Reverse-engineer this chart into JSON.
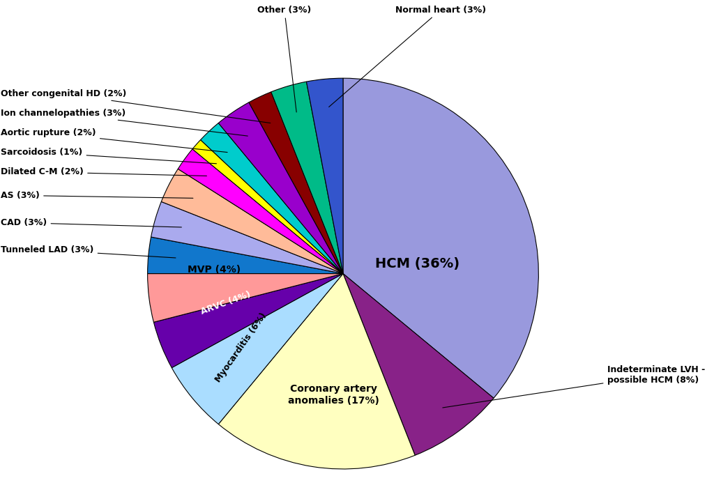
{
  "slices": [
    {
      "label": "HCM (36%)",
      "pct": 36,
      "color": "#9999DD"
    },
    {
      "label": "Indeterminate LVH -\npossible HCM (8%)",
      "pct": 8,
      "color": "#882288"
    },
    {
      "label": "Coronary artery\nanomalies (17%)",
      "pct": 17,
      "color": "#FFFFC0"
    },
    {
      "label": "Myocarditis (6%)",
      "pct": 6,
      "color": "#AADDFF"
    },
    {
      "label": "ARVC (4%)",
      "pct": 4,
      "color": "#6600AA"
    },
    {
      "label": "MVP (4%)",
      "pct": 4,
      "color": "#FF9999"
    },
    {
      "label": "Tunneled LAD (3%)",
      "pct": 3,
      "color": "#1177CC"
    },
    {
      "label": "CAD (3%)",
      "pct": 3,
      "color": "#AAAAEE"
    },
    {
      "label": "AS (3%)",
      "pct": 3,
      "color": "#FFBB99"
    },
    {
      "label": "Dilated C-M (2%)",
      "pct": 2,
      "color": "#FF00FF"
    },
    {
      "label": "Sarcoidosis (1%)",
      "pct": 1,
      "color": "#FFFF00"
    },
    {
      "label": "Aortic rupture (2%)",
      "pct": 2,
      "color": "#00CCCC"
    },
    {
      "label": "Ion channelopathies (3%)",
      "pct": 3,
      "color": "#9900CC"
    },
    {
      "label": "Other congenital HD (2%)",
      "pct": 2,
      "color": "#880000"
    },
    {
      "label": "Other (3%)",
      "pct": 3,
      "color": "#00BB88"
    },
    {
      "label": "Normal heart (3%)",
      "pct": 3,
      "color": "#3355CC"
    }
  ],
  "background_color": "#FFFFFF"
}
